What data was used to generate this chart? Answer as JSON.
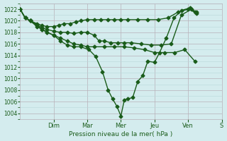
{
  "xlabel": "Pression niveau de la mer( hPa )",
  "bg_color": "#d4ecee",
  "line_color": "#1a5c1a",
  "marker": "D",
  "marker_size": 2.5,
  "line_width": 1.0,
  "ylim": [
    1003,
    1023
  ],
  "xlim": [
    0,
    6.0
  ],
  "ytick_major": 2,
  "ytick_minor": 1,
  "grid_color_minor": "#b8d8da",
  "grid_color_major": "#b8b0b8",
  "day_labels": [
    "Dim",
    "Mar",
    "Mer",
    "Jeu",
    "Ven",
    "S"
  ],
  "day_positions": [
    1.0,
    2.0,
    3.0,
    4.0,
    5.0,
    6.0
  ],
  "series1_x": [
    0.0,
    0.15,
    0.3,
    0.5,
    0.65,
    0.8,
    1.0,
    1.15,
    1.3,
    1.5,
    1.65,
    1.8,
    2.0,
    2.2,
    2.4,
    2.6,
    2.8,
    3.0,
    3.2,
    3.5,
    3.8,
    4.1,
    4.4,
    4.7,
    5.0,
    5.2
  ],
  "series1_y": [
    1022,
    1020.5,
    1020.0,
    1019.5,
    1019.2,
    1019.0,
    1019.0,
    1019.2,
    1019.5,
    1019.5,
    1019.8,
    1020.0,
    1020.2,
    1020.2,
    1020.2,
    1020.2,
    1020.2,
    1020.2,
    1020.2,
    1020.2,
    1020.2,
    1020.2,
    1020.5,
    1021.5,
    1022.0,
    1021.5
  ],
  "series2_x": [
    0.0,
    0.15,
    0.3,
    0.5,
    0.65,
    0.8,
    1.0,
    1.2,
    1.4,
    1.6,
    1.8,
    2.0,
    2.2,
    2.35,
    2.5,
    2.7,
    2.9,
    3.1,
    3.3,
    3.6,
    3.9,
    4.2,
    4.5,
    4.8,
    5.1,
    5.25
  ],
  "series2_y": [
    1022,
    1020.5,
    1020.0,
    1019.3,
    1018.8,
    1018.5,
    1018.2,
    1018.0,
    1018.0,
    1017.8,
    1018.0,
    1018.0,
    1017.5,
    1016.5,
    1016.5,
    1016.2,
    1016.2,
    1016.2,
    1016.2,
    1016.0,
    1015.8,
    1015.8,
    1016.0,
    1021.0,
    1022.0,
    1021.3
  ],
  "series3_x": [
    0.0,
    0.15,
    0.3,
    0.5,
    0.65,
    0.8,
    1.0,
    1.2,
    1.4,
    1.6,
    1.8,
    2.0,
    2.2,
    2.5,
    2.8,
    3.1,
    3.4,
    3.7,
    4.0,
    4.3,
    4.6,
    4.9,
    5.2
  ],
  "series3_y": [
    1022,
    1020.5,
    1020.0,
    1019.0,
    1018.5,
    1018.0,
    1017.5,
    1017.0,
    1016.5,
    1016.0,
    1015.8,
    1015.5,
    1015.5,
    1015.5,
    1015.5,
    1015.5,
    1015.3,
    1015.0,
    1014.5,
    1014.5,
    1014.5,
    1015.0,
    1013.0
  ],
  "main_x": [
    0.0,
    0.15,
    0.3,
    0.5,
    0.65,
    0.8,
    1.0,
    1.2,
    1.4,
    1.6,
    1.8,
    2.05,
    2.25,
    2.45,
    2.62,
    2.75,
    2.88,
    3.0,
    3.1,
    3.2,
    3.35,
    3.5,
    3.65,
    3.8,
    4.0,
    4.15,
    4.35,
    4.58,
    4.8,
    5.05,
    5.25
  ],
  "main_y": [
    1022,
    1020.5,
    1020.0,
    1019.2,
    1018.5,
    1018.0,
    1017.5,
    1016.5,
    1015.8,
    1015.5,
    1015.5,
    1015.0,
    1013.8,
    1011.2,
    1008.0,
    1006.5,
    1005.2,
    1003.5,
    1006.3,
    1006.5,
    1006.7,
    1009.5,
    1010.5,
    1013.0,
    1012.8,
    1014.5,
    1017.0,
    1020.5,
    1021.8,
    1022.2,
    1021.5
  ]
}
